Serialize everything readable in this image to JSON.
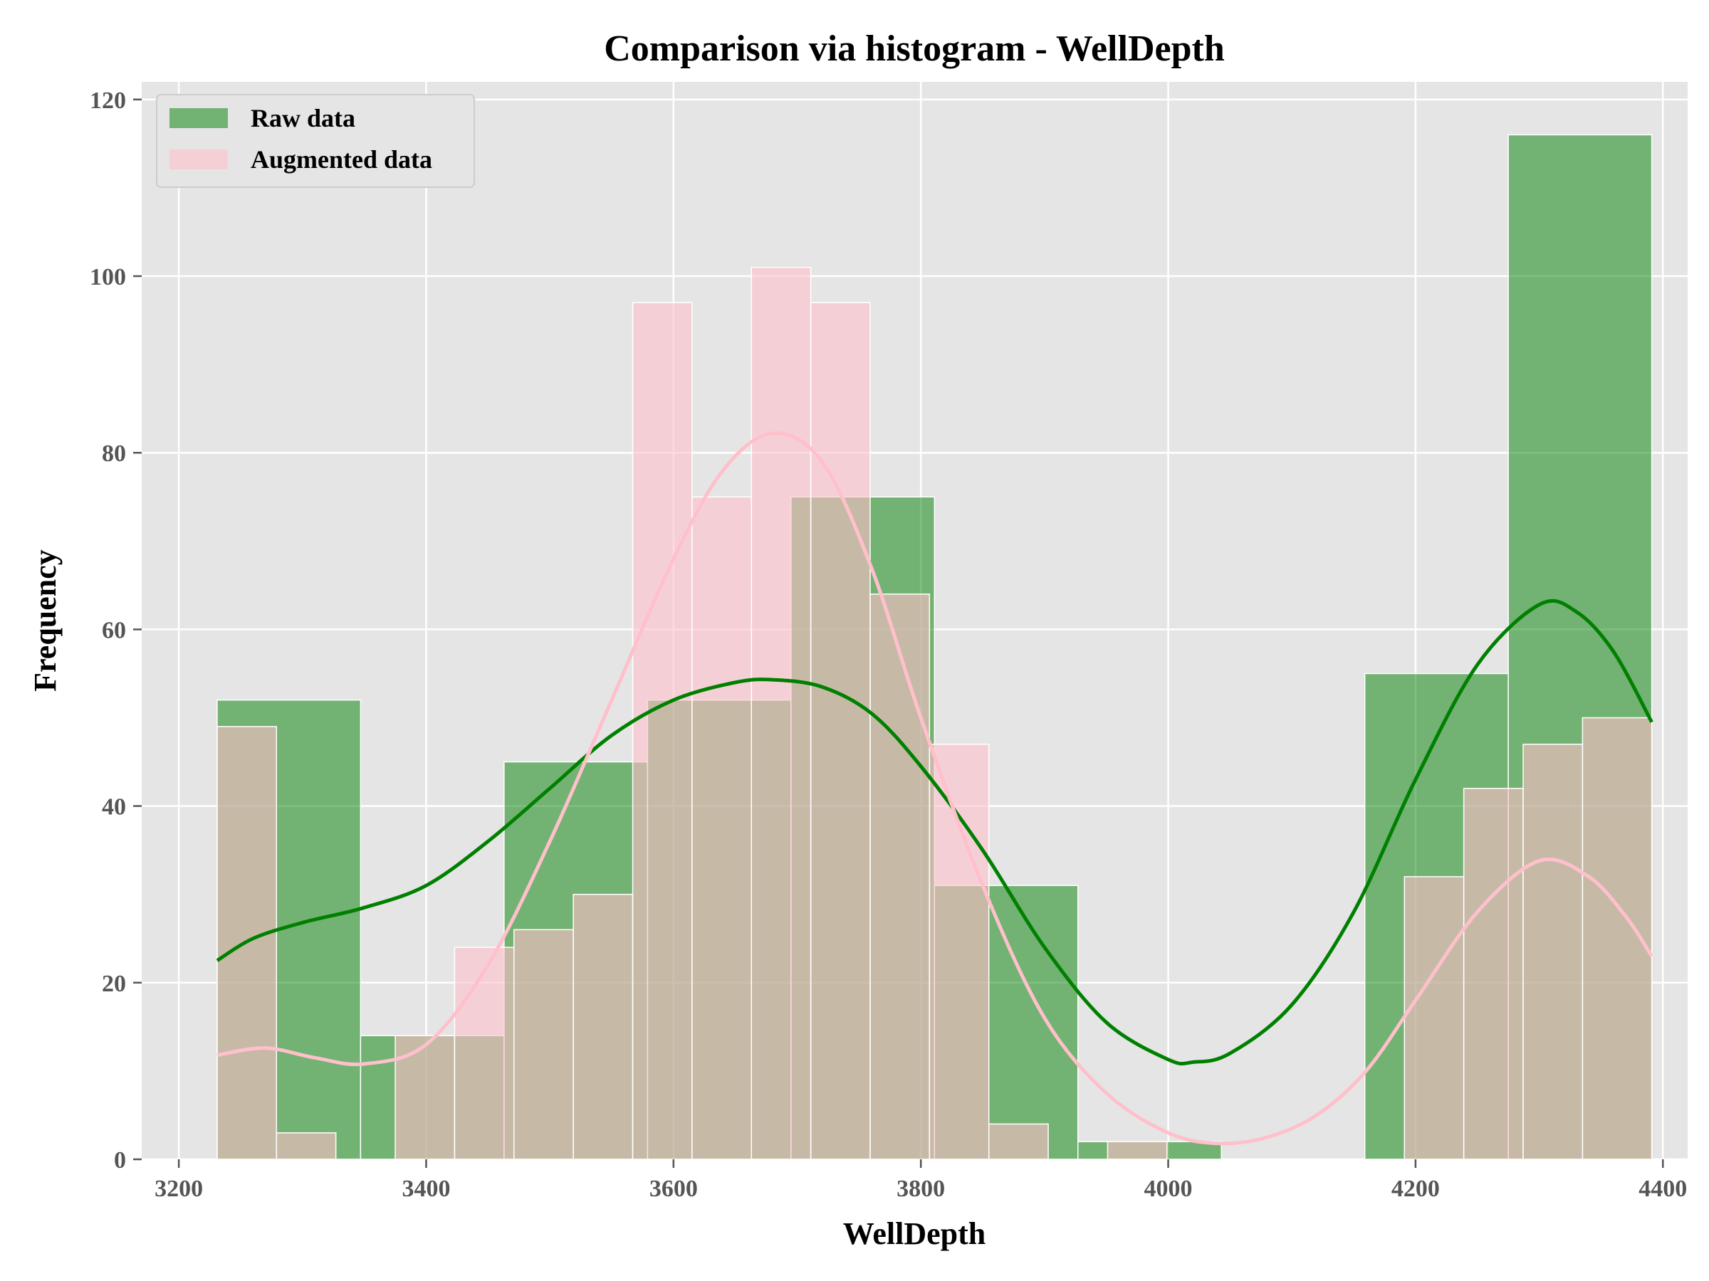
{
  "chart_data": {
    "type": "bar",
    "title": "Comparison via histogram - WellDepth",
    "xlabel": "WellDepth",
    "ylabel": "Frequency",
    "xlim": [
      3170,
      4420
    ],
    "ylim": [
      0,
      122
    ],
    "xticks": [
      3200,
      3400,
      3600,
      3800,
      4000,
      4200,
      4400
    ],
    "yticks": [
      0,
      20,
      40,
      60,
      80,
      100,
      120
    ],
    "grid": true,
    "legend_position": "top-left",
    "series": [
      {
        "name": "Raw data",
        "color": "#008000",
        "opacity": 0.5,
        "bins": [
          {
            "x0": 3231,
            "x1": 3347,
            "count": 52
          },
          {
            "x0": 3347,
            "x1": 3463,
            "count": 14
          },
          {
            "x0": 3463,
            "x1": 3579,
            "count": 45
          },
          {
            "x0": 3579,
            "x1": 3695,
            "count": 52
          },
          {
            "x0": 3695,
            "x1": 3811,
            "count": 75
          },
          {
            "x0": 3811,
            "x1": 3927,
            "count": 31
          },
          {
            "x0": 3927,
            "x1": 4043,
            "count": 2
          },
          {
            "x0": 4043,
            "x1": 4159,
            "count": 0
          },
          {
            "x0": 4159,
            "x1": 4275,
            "count": 55
          },
          {
            "x0": 4275,
            "x1": 4391,
            "count": 116
          }
        ],
        "kde": [
          [
            3231,
            22.5
          ],
          [
            3260,
            25
          ],
          [
            3300,
            26.8
          ],
          [
            3350,
            28.5
          ],
          [
            3400,
            31
          ],
          [
            3450,
            36
          ],
          [
            3500,
            42
          ],
          [
            3550,
            48
          ],
          [
            3600,
            52
          ],
          [
            3650,
            54
          ],
          [
            3680,
            54.3
          ],
          [
            3720,
            53.5
          ],
          [
            3760,
            50.5
          ],
          [
            3800,
            44.5
          ],
          [
            3850,
            35
          ],
          [
            3900,
            24
          ],
          [
            3950,
            15.5
          ],
          [
            4000,
            11.3
          ],
          [
            4020,
            11
          ],
          [
            4050,
            12
          ],
          [
            4100,
            17.5
          ],
          [
            4150,
            28
          ],
          [
            4200,
            43
          ],
          [
            4250,
            56
          ],
          [
            4300,
            62.8
          ],
          [
            4330,
            62
          ],
          [
            4360,
            57.5
          ],
          [
            4391,
            49.5
          ]
        ]
      },
      {
        "name": "Augmented data",
        "color": "#ffc0cb",
        "opacity": 0.6,
        "bins": [
          {
            "x0": 3231,
            "x1": 3279,
            "count": 49
          },
          {
            "x0": 3279,
            "x1": 3327,
            "count": 3
          },
          {
            "x0": 3327,
            "x1": 3375,
            "count": 0
          },
          {
            "x0": 3375,
            "x1": 3423,
            "count": 14
          },
          {
            "x0": 3423,
            "x1": 3471,
            "count": 24
          },
          {
            "x0": 3471,
            "x1": 3519,
            "count": 26
          },
          {
            "x0": 3519,
            "x1": 3567,
            "count": 30
          },
          {
            "x0": 3567,
            "x1": 3615,
            "count": 97
          },
          {
            "x0": 3615,
            "x1": 3663,
            "count": 75
          },
          {
            "x0": 3663,
            "x1": 3711,
            "count": 101
          },
          {
            "x0": 3711,
            "x1": 3759,
            "count": 97
          },
          {
            "x0": 3759,
            "x1": 3807,
            "count": 64
          },
          {
            "x0": 3807,
            "x1": 3855,
            "count": 47
          },
          {
            "x0": 3855,
            "x1": 3903,
            "count": 4
          },
          {
            "x0": 3903,
            "x1": 3951,
            "count": 0
          },
          {
            "x0": 3951,
            "x1": 3999,
            "count": 2
          },
          {
            "x0": 3999,
            "x1": 4047,
            "count": 0
          },
          {
            "x0": 4047,
            "x1": 4095,
            "count": 0
          },
          {
            "x0": 4095,
            "x1": 4143,
            "count": 0
          },
          {
            "x0": 4143,
            "x1": 4191,
            "count": 0
          },
          {
            "x0": 4191,
            "x1": 4239,
            "count": 32
          },
          {
            "x0": 4239,
            "x1": 4287,
            "count": 42
          },
          {
            "x0": 4287,
            "x1": 4335,
            "count": 47
          },
          {
            "x0": 4335,
            "x1": 4391,
            "count": 50
          }
        ],
        "kde": [
          [
            3231,
            11.8
          ],
          [
            3270,
            12.6
          ],
          [
            3310,
            11.5
          ],
          [
            3350,
            10.8
          ],
          [
            3400,
            13
          ],
          [
            3450,
            22
          ],
          [
            3500,
            36
          ],
          [
            3550,
            52
          ],
          [
            3600,
            68
          ],
          [
            3640,
            78
          ],
          [
            3680,
            82.2
          ],
          [
            3720,
            79
          ],
          [
            3760,
            67
          ],
          [
            3800,
            50
          ],
          [
            3850,
            31
          ],
          [
            3900,
            16
          ],
          [
            3950,
            7.5
          ],
          [
            4000,
            3
          ],
          [
            4040,
            1.8
          ],
          [
            4080,
            2.5
          ],
          [
            4120,
            5
          ],
          [
            4160,
            10
          ],
          [
            4200,
            18
          ],
          [
            4250,
            28
          ],
          [
            4300,
            33.8
          ],
          [
            4340,
            32
          ],
          [
            4370,
            27.5
          ],
          [
            4391,
            23
          ]
        ]
      }
    ]
  }
}
